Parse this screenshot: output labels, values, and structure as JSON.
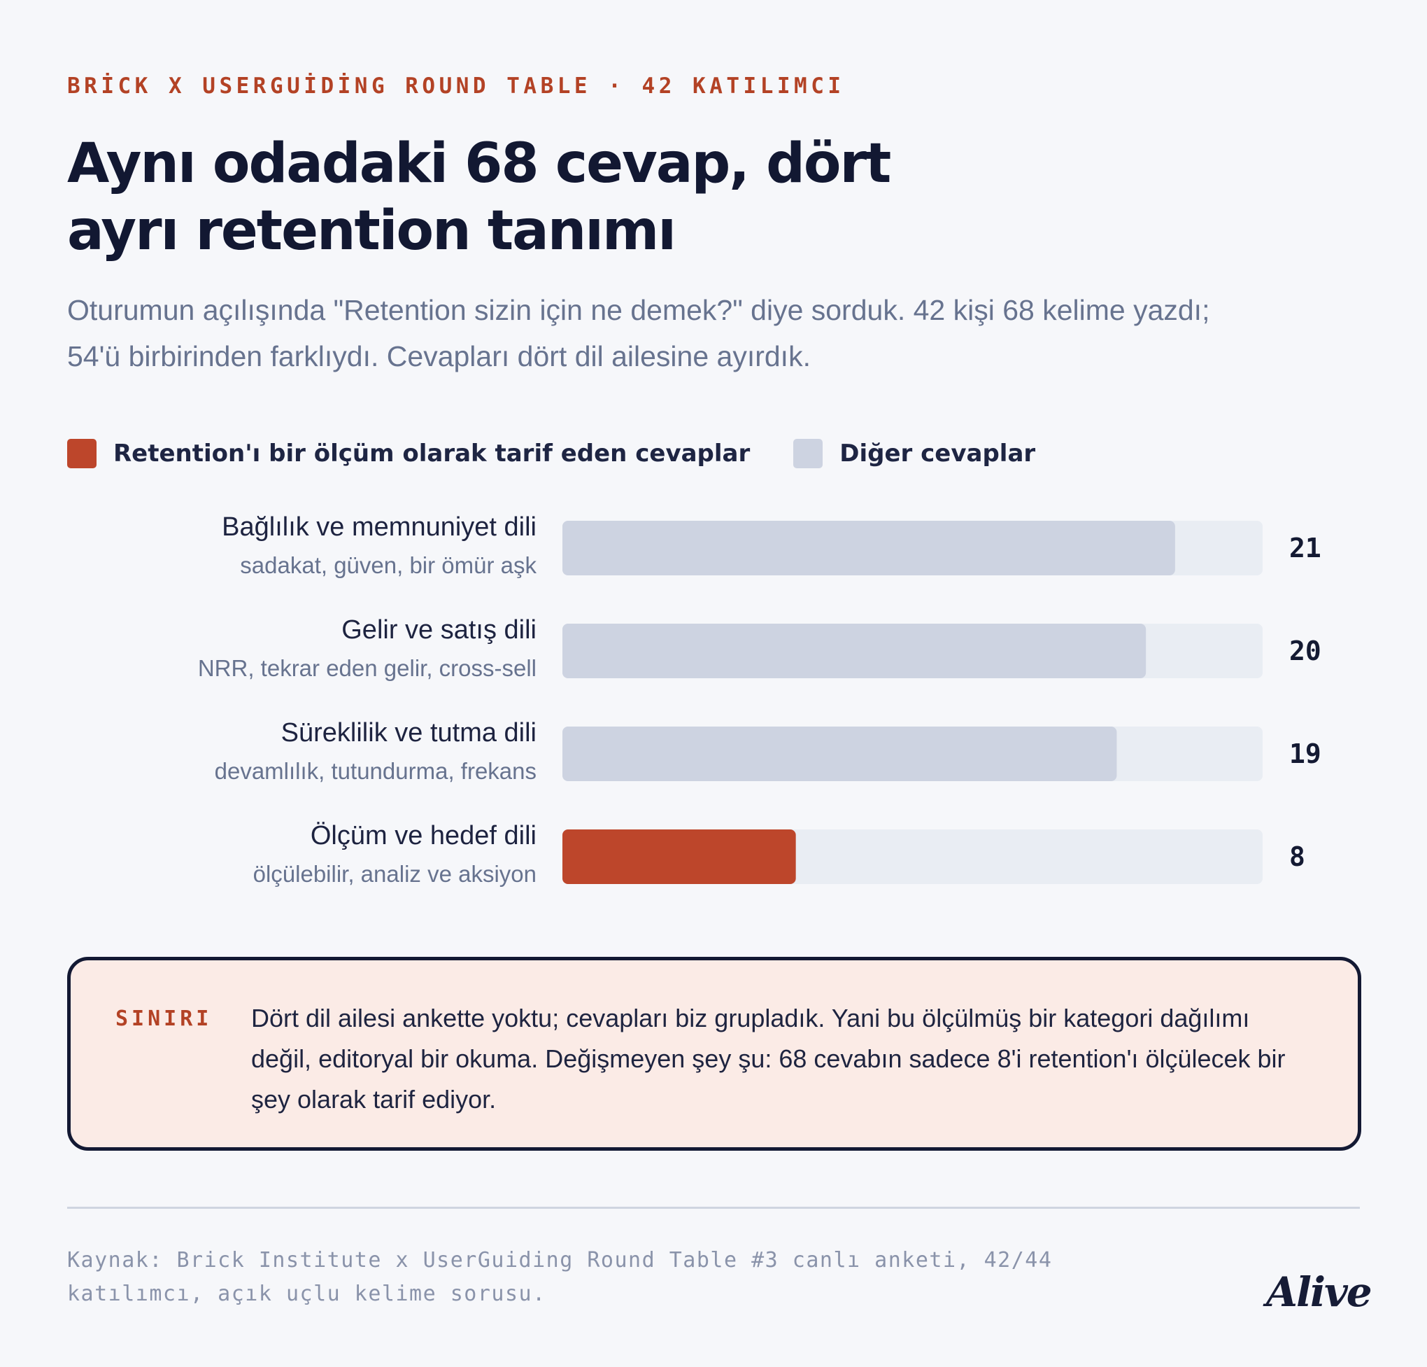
{
  "header": {
    "kicker": "BRİCK X USERGUİDİNG ROUND TABLE · 42 KATILIMCI",
    "title": "Aynı odadaki 68 cevap, dört ayrı retention tanımı",
    "subtitle": "Oturumun açılışında \"Retention sizin için ne demek?\" diye sorduk. 42 kişi 68 kelime yazdı; 54'ü birbirinden farklıydı. Cevapları dört dil ailesine ayırdık."
  },
  "legend": {
    "items": [
      {
        "label": "Retention'ı bir ölçüm olarak tarif eden cevaplar",
        "color": "#bd462b"
      },
      {
        "label": "Diğer cevaplar",
        "color": "#cdd3e1"
      }
    ]
  },
  "chart_data": {
    "type": "bar",
    "orientation": "horizontal",
    "categories": [
      "Bağlılık ve memnuniyet dili",
      "Gelir ve satış dili",
      "Süreklilik ve tutma dili",
      "Ölçüm ve hedef dili"
    ],
    "category_subtitles": [
      "sadakat, güven, bir ömür aşk",
      "NRR, tekrar eden gelir, cross-sell",
      "devamlılık, tutundurma, frekans",
      "ölçülebilir, analiz ve aksiyon"
    ],
    "values": [
      21,
      20,
      19,
      8
    ],
    "highlight": [
      false,
      false,
      false,
      true
    ],
    "xlim": [
      0,
      24
    ],
    "colors": {
      "highlight": "#bd462b",
      "other": "#cdd3e1",
      "track": "#e9edf3"
    }
  },
  "callout": {
    "label": "SINIRI",
    "text": "Dört dil ailesi ankette yoktu; cevapları biz grupladık. Yani bu ölçülmüş bir kategori dağılımı değil, editoryal bir okuma. Değişmeyen şey şu: 68 cevabın sadece 8'i retention'ı ölçülecek bir şey olarak tarif ediyor."
  },
  "footer": {
    "source": "Kaynak: Brick Institute x UserGuiding Round Table #3 canlı anketi, 42/44 katılımcı, açık uçlu kelime sorusu.",
    "logo": "Alive"
  }
}
